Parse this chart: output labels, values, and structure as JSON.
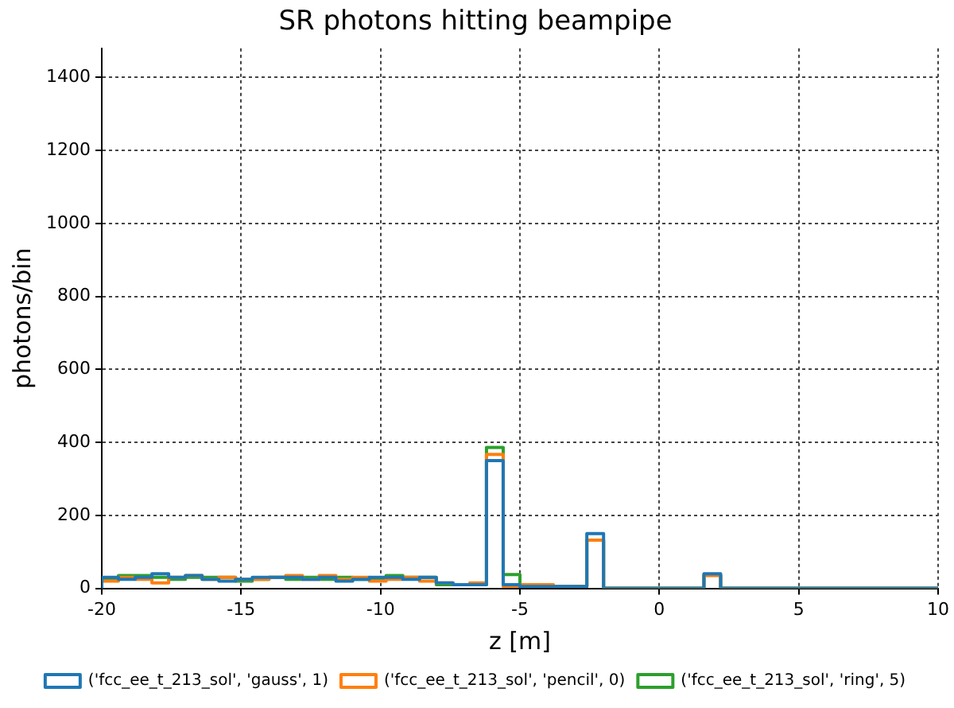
{
  "chart_data": {
    "type": "histogram",
    "title": "SR photons hitting beampipe",
    "xlabel": "z [m]",
    "ylabel": "photons/bin",
    "bins": [
      -20,
      -19.4,
      -18.8,
      -18.2,
      -17.6,
      -17,
      -16.4,
      -15.8,
      -15.2,
      -14.6,
      -14,
      -13.4,
      -12.8,
      -12.2,
      -11.6,
      -11,
      -10.4,
      -9.8,
      -9.2,
      -8.6,
      -8,
      -7.4,
      -6.8,
      -6.2,
      -5.6,
      -5,
      -4.4,
      -3.8,
      -3.2,
      -2.6,
      -2,
      -1.4,
      -0.8,
      -0.2,
      0.4,
      1,
      1.6,
      2.2,
      2.8,
      3.4,
      4,
      4.6,
      5.2,
      5.8,
      6.4,
      7,
      7.6,
      8.2,
      8.8,
      9.4,
      10
    ],
    "series": [
      {
        "name": "('fcc_ee_t_213_sol', 'gauss', 1)",
        "color": "#1f77b4",
        "values": [
          30,
          25,
          30,
          40,
          30,
          35,
          25,
          20,
          25,
          30,
          30,
          30,
          25,
          30,
          20,
          25,
          30,
          30,
          25,
          30,
          15,
          10,
          10,
          350,
          10,
          5,
          5,
          5,
          5,
          150,
          0,
          0,
          0,
          0,
          0,
          0,
          40,
          0,
          0,
          0,
          0,
          0,
          0,
          0,
          0,
          0,
          0,
          0,
          0,
          0
        ]
      },
      {
        "name": "('fcc_ee_t_213_sol', 'pencil', 0)",
        "color": "#ff7f0e",
        "values": [
          20,
          30,
          25,
          15,
          30,
          35,
          25,
          30,
          25,
          25,
          30,
          35,
          25,
          35,
          25,
          30,
          20,
          25,
          30,
          20,
          15,
          10,
          15,
          367,
          5,
          10,
          10,
          5,
          5,
          132,
          0,
          0,
          0,
          0,
          0,
          0,
          35,
          0,
          0,
          0,
          0,
          0,
          0,
          0,
          0,
          0,
          0,
          0,
          0,
          0
        ]
      },
      {
        "name": "('fcc_ee_t_213_sol', 'ring', 5)",
        "color": "#2ca02c",
        "values": [
          25,
          35,
          35,
          30,
          25,
          30,
          30,
          30,
          20,
          25,
          30,
          25,
          30,
          25,
          30,
          25,
          25,
          35,
          30,
          30,
          10,
          10,
          10,
          386,
          38,
          5,
          5,
          5,
          5,
          132,
          0,
          0,
          0,
          0,
          0,
          0,
          36,
          0,
          0,
          0,
          0,
          0,
          0,
          0,
          0,
          0,
          0,
          0,
          0,
          0
        ]
      }
    ],
    "xlim": [
      -20,
      10
    ],
    "xticks": [
      -20,
      -15,
      -10,
      -5,
      0,
      5,
      10
    ],
    "ylim": [
      0,
      1480
    ],
    "yticks": [
      0,
      200,
      400,
      600,
      800,
      1000,
      1200,
      1400
    ],
    "grid": true,
    "legend": "bottom"
  }
}
